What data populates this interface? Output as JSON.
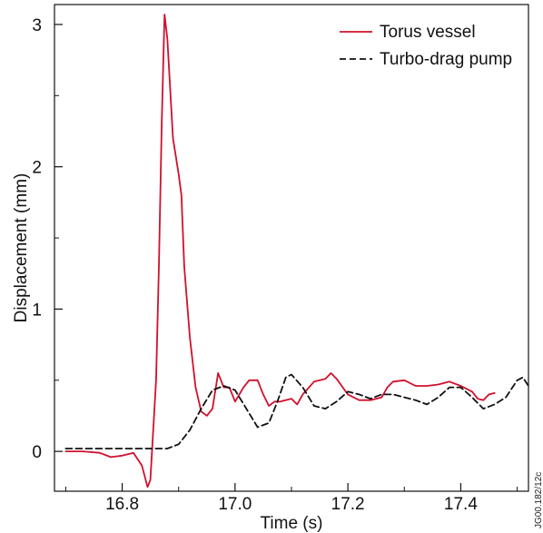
{
  "chart_data": {
    "type": "line",
    "title": "",
    "xlabel": "Time (s)",
    "ylabel": "Displacement (mm)",
    "xlim": [
      16.68,
      17.52
    ],
    "ylim": [
      -0.28,
      3.14
    ],
    "x_ticks": [
      16.8,
      17.0,
      17.2,
      17.4
    ],
    "x_tick_labels": [
      "16.8",
      "17.0",
      "17.2",
      "17.4"
    ],
    "y_ticks": [
      0,
      1,
      2,
      3
    ],
    "y_tick_labels": [
      "0",
      "1",
      "2",
      "3"
    ],
    "grid": false,
    "legend_position": "top-right",
    "side_note": "JG00.182/12c",
    "series": [
      {
        "name": "Torus vessel",
        "color": "#d0102c",
        "dash": "solid",
        "points": [
          [
            16.7,
            0.0
          ],
          [
            16.73,
            0.0
          ],
          [
            16.76,
            -0.01
          ],
          [
            16.78,
            -0.04
          ],
          [
            16.8,
            -0.03
          ],
          [
            16.82,
            -0.01
          ],
          [
            16.835,
            -0.1
          ],
          [
            16.845,
            -0.25
          ],
          [
            16.85,
            -0.2
          ],
          [
            16.86,
            0.5
          ],
          [
            16.865,
            1.3
          ],
          [
            16.87,
            2.3
          ],
          [
            16.875,
            3.07
          ],
          [
            16.88,
            2.9
          ],
          [
            16.89,
            2.2
          ],
          [
            16.9,
            1.95
          ],
          [
            16.905,
            1.8
          ],
          [
            16.91,
            1.3
          ],
          [
            16.92,
            0.8
          ],
          [
            16.93,
            0.45
          ],
          [
            16.94,
            0.28
          ],
          [
            16.95,
            0.25
          ],
          [
            16.96,
            0.3
          ],
          [
            16.97,
            0.55
          ],
          [
            16.98,
            0.45
          ],
          [
            16.99,
            0.45
          ],
          [
            17.0,
            0.35
          ],
          [
            17.015,
            0.45
          ],
          [
            17.025,
            0.5
          ],
          [
            17.04,
            0.5
          ],
          [
            17.05,
            0.4
          ],
          [
            17.06,
            0.32
          ],
          [
            17.07,
            0.35
          ],
          [
            17.08,
            0.35
          ],
          [
            17.1,
            0.37
          ],
          [
            17.11,
            0.33
          ],
          [
            17.12,
            0.4
          ],
          [
            17.14,
            0.49
          ],
          [
            17.16,
            0.51
          ],
          [
            17.17,
            0.55
          ],
          [
            17.18,
            0.51
          ],
          [
            17.2,
            0.4
          ],
          [
            17.22,
            0.36
          ],
          [
            17.24,
            0.36
          ],
          [
            17.26,
            0.38
          ],
          [
            17.27,
            0.45
          ],
          [
            17.28,
            0.49
          ],
          [
            17.3,
            0.5
          ],
          [
            17.32,
            0.46
          ],
          [
            17.34,
            0.46
          ],
          [
            17.36,
            0.47
          ],
          [
            17.38,
            0.49
          ],
          [
            17.4,
            0.46
          ],
          [
            17.42,
            0.42
          ],
          [
            17.43,
            0.37
          ],
          [
            17.44,
            0.36
          ],
          [
            17.45,
            0.4
          ],
          [
            17.46,
            0.41
          ]
        ]
      },
      {
        "name": "Turbo-drag pump",
        "color": "#111111",
        "dash": "dashed",
        "points": [
          [
            16.7,
            0.02
          ],
          [
            16.75,
            0.02
          ],
          [
            16.8,
            0.02
          ],
          [
            16.85,
            0.02
          ],
          [
            16.88,
            0.02
          ],
          [
            16.9,
            0.05
          ],
          [
            16.92,
            0.15
          ],
          [
            16.94,
            0.3
          ],
          [
            16.96,
            0.43
          ],
          [
            16.98,
            0.46
          ],
          [
            17.0,
            0.43
          ],
          [
            17.02,
            0.3
          ],
          [
            17.04,
            0.17
          ],
          [
            17.06,
            0.2
          ],
          [
            17.075,
            0.35
          ],
          [
            17.09,
            0.52
          ],
          [
            17.1,
            0.54
          ],
          [
            17.12,
            0.45
          ],
          [
            17.14,
            0.32
          ],
          [
            17.16,
            0.3
          ],
          [
            17.18,
            0.35
          ],
          [
            17.2,
            0.42
          ],
          [
            17.22,
            0.4
          ],
          [
            17.24,
            0.37
          ],
          [
            17.26,
            0.4
          ],
          [
            17.28,
            0.4
          ],
          [
            17.3,
            0.38
          ],
          [
            17.32,
            0.36
          ],
          [
            17.34,
            0.33
          ],
          [
            17.36,
            0.38
          ],
          [
            17.38,
            0.45
          ],
          [
            17.4,
            0.45
          ],
          [
            17.42,
            0.38
          ],
          [
            17.44,
            0.3
          ],
          [
            17.46,
            0.33
          ],
          [
            17.48,
            0.38
          ],
          [
            17.5,
            0.5
          ],
          [
            17.51,
            0.52
          ],
          [
            17.52,
            0.46
          ]
        ]
      }
    ]
  }
}
